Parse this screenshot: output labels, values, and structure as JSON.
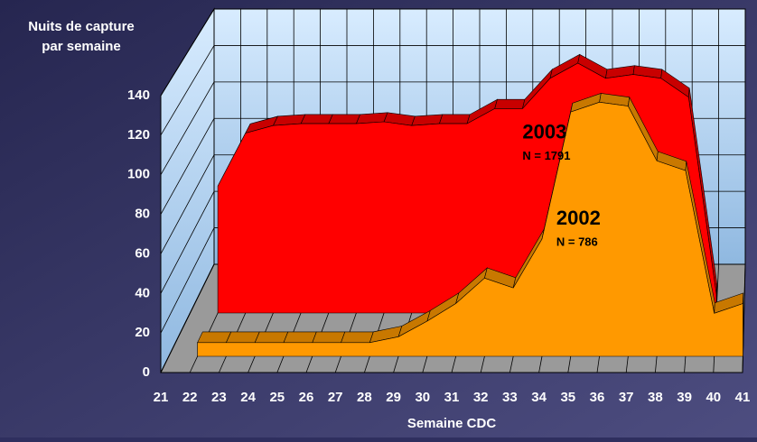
{
  "chart_data": {
    "type": "area3d",
    "y_axis_label": [
      "Nuits de capture",
      "par semaine"
    ],
    "x_axis_label": "Semaine CDC",
    "categories": [
      "21",
      "22",
      "23",
      "24",
      "25",
      "26",
      "27",
      "28",
      "29",
      "30",
      "31",
      "32",
      "33",
      "34",
      "35",
      "36",
      "37",
      "38",
      "39",
      "40",
      "41"
    ],
    "series": [
      {
        "name": "2003",
        "note": "N = 1791",
        "color": "#ff0000",
        "side_color": "#c80000",
        "values": [
          null,
          67,
          95,
          99,
          100,
          100,
          100,
          101,
          99,
          100,
          100,
          108,
          108,
          124,
          132,
          124,
          126,
          124,
          114,
          10,
          null
        ]
      },
      {
        "name": "2002",
        "note": "N = 786",
        "color": "#ff9900",
        "side_color": "#c87800",
        "values": [
          null,
          7,
          7,
          7,
          7,
          7,
          7,
          7,
          10,
          18,
          27,
          40,
          35,
          60,
          125,
          130,
          128,
          100,
          95,
          22,
          27
        ]
      }
    ],
    "ylim": [
      0,
      140
    ],
    "yticks": [
      0,
      20,
      40,
      60,
      80,
      100,
      120,
      140
    ],
    "grid": true
  }
}
